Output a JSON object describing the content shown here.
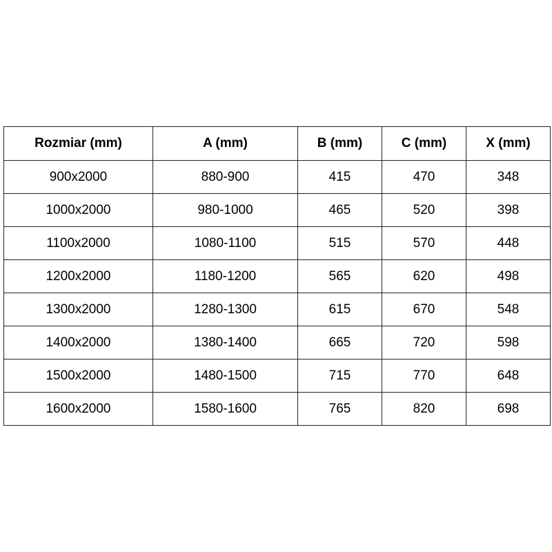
{
  "table": {
    "headers": [
      "Rozmiar (mm)",
      "A (mm)",
      "B (mm)",
      "C (mm)",
      "X (mm)"
    ],
    "rows": [
      [
        "900x2000",
        "880-900",
        "415",
        "470",
        "348"
      ],
      [
        "1000x2000",
        "980-1000",
        "465",
        "520",
        "398"
      ],
      [
        "1100x2000",
        "1080-1100",
        "515",
        "570",
        "448"
      ],
      [
        "1200x2000",
        "1180-1200",
        "565",
        "620",
        "498"
      ],
      [
        "1300x2000",
        "1280-1300",
        "615",
        "670",
        "548"
      ],
      [
        "1400x2000",
        "1380-1400",
        "665",
        "720",
        "598"
      ],
      [
        "1500x2000",
        "1480-1500",
        "715",
        "770",
        "648"
      ],
      [
        "1600x2000",
        "1580-1600",
        "765",
        "820",
        "698"
      ]
    ]
  }
}
